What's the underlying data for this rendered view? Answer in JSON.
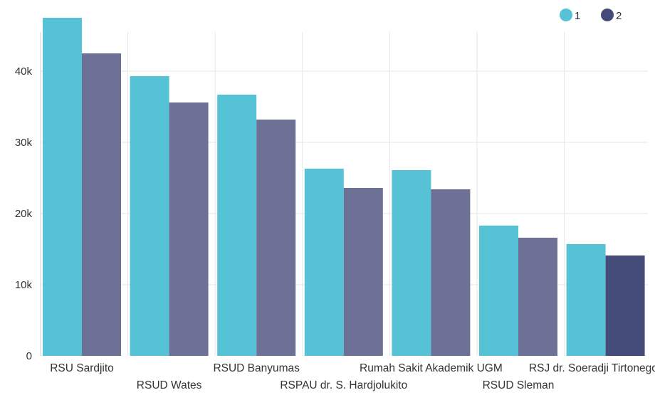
{
  "chart_data": {
    "type": "bar",
    "categories": [
      "RSU Sardjito",
      "RSUD Wates",
      "RSUD Banyumas",
      "RSPAU dr. S. Hardjolukito",
      "Rumah Sakit Akademik UGM",
      "RSUD Sleman",
      "RSJ dr. Soeradji Tirtonegoro (R"
    ],
    "series": [
      {
        "name": "1",
        "values": [
          47500,
          39300,
          36700,
          26300,
          26100,
          18300,
          15700
        ]
      },
      {
        "name": "2",
        "values": [
          42500,
          35600,
          33200,
          23600,
          23400,
          16600,
          14100
        ]
      }
    ],
    "title": "",
    "xlabel": "",
    "ylabel": "",
    "ylim": [
      0,
      48000
    ],
    "yticks": [
      0,
      10000,
      20000,
      30000,
      40000
    ],
    "ytick_labels": [
      "0",
      "10k",
      "20k",
      "30k",
      "40k"
    ],
    "grid": true,
    "legend_position": "top-right",
    "colors": {
      "series_1": "#55c2d6",
      "series_2": "#6e7196",
      "series_2_highlight": "#454b79"
    },
    "highlight": {
      "series": 1,
      "category": 6
    }
  }
}
